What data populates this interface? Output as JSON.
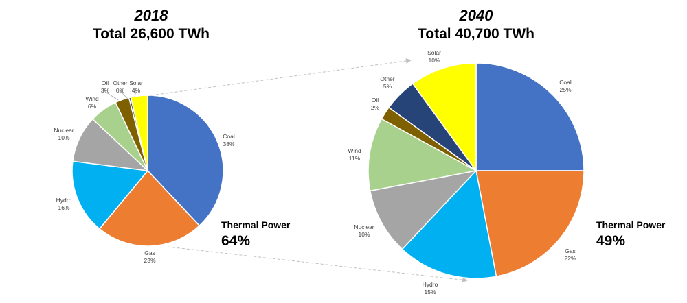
{
  "chart_data": [
    {
      "type": "pie",
      "title": "2018",
      "subtitle": "Total 26,600 TWh",
      "annotation": {
        "label": "Thermal Power",
        "value": "64%"
      },
      "slices": [
        {
          "name": "Coal",
          "value": 38,
          "value_label": "38%",
          "color": "#4472C4"
        },
        {
          "name": "Gas",
          "value": 23,
          "value_label": "23%",
          "color": "#ED7D31"
        },
        {
          "name": "Hydro",
          "value": 16,
          "value_label": "16%",
          "color": "#00B0F0"
        },
        {
          "name": "Nuclear",
          "value": 10,
          "value_label": "10%",
          "color": "#A5A5A5"
        },
        {
          "name": "Wind",
          "value": 6,
          "value_label": "6%",
          "color": "#A9D18E"
        },
        {
          "name": "Oil",
          "value": 3,
          "value_label": "3%",
          "color": "#7F6000"
        },
        {
          "name": "Other",
          "value": 0.4,
          "value_label": "0%",
          "color": "#264478"
        },
        {
          "name": "Solar",
          "value": 3.6,
          "value_label": "4%",
          "color": "#FFFF00"
        }
      ]
    },
    {
      "type": "pie",
      "title": "2040",
      "subtitle": "Total 40,700 TWh",
      "annotation": {
        "label": "Thermal Power",
        "value": "49%"
      },
      "slices": [
        {
          "name": "Coal",
          "value": 25,
          "value_label": "25%",
          "color": "#4472C4"
        },
        {
          "name": "Gas",
          "value": 22,
          "value_label": "22%",
          "color": "#ED7D31"
        },
        {
          "name": "Hydro",
          "value": 15,
          "value_label": "15%",
          "color": "#00B0F0"
        },
        {
          "name": "Nuclear",
          "value": 10,
          "value_label": "10%",
          "color": "#A5A5A5"
        },
        {
          "name": "Wind",
          "value": 11,
          "value_label": "11%",
          "color": "#A9D18E"
        },
        {
          "name": "Oil",
          "value": 2,
          "value_label": "2%",
          "color": "#7F6000"
        },
        {
          "name": "Other",
          "value": 5,
          "value_label": "5%",
          "color": "#264478"
        },
        {
          "name": "Solar",
          "value": 10,
          "value_label": "10%",
          "color": "#FFFF00"
        }
      ]
    }
  ]
}
